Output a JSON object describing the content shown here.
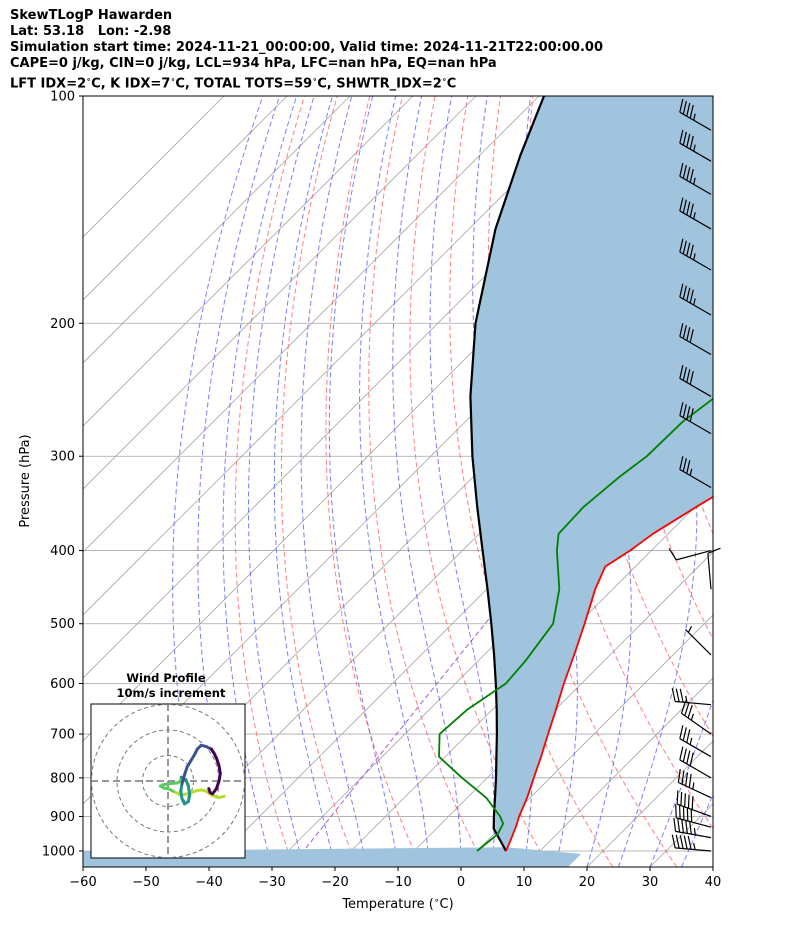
{
  "header": {
    "line1": "SkewTLogP Hawarden",
    "line2": "Lat: 53.18   Lon: -2.98",
    "line3": "Simulation start time: 2024-11-21_00:00:00, Valid time: 2024-11-21T22:00:00.00",
    "line4": "CAPE=0 j/kg, CIN=0 j/kg, LCL=934 hPa, LFC=nan hPa, EQ=nan hPa",
    "line5": "LFT IDX=2$^\\circ$C, K IDX=7$^\\circ$C, TOTAL TOTS=59$^\\circ$C, SHWTR_IDX=2$^\\circ$C"
  },
  "chart_data": [
    {
      "type": "line",
      "xlabel": "Temperature ($^\\circ$C)",
      "ylabel": "Pressure (hPa)",
      "xlim": [
        -60,
        40
      ],
      "ylim": [
        1050,
        100
      ],
      "y_scale": "log",
      "skew": "isotherms skewed 45 degrees",
      "grid": true,
      "x_ticks": [
        -60,
        -50,
        -40,
        -30,
        -20,
        -10,
        0,
        10,
        20,
        30,
        40
      ],
      "y_ticks": [
        1000,
        900,
        800,
        700,
        600,
        500,
        400,
        300,
        200,
        100
      ],
      "colors": {
        "temperature": "#ff0000",
        "dewpoint": "#008000",
        "parcel": "#000000",
        "cin_cape_fill": "#a0c4dd",
        "dry_adiabats": "#ff5555",
        "moist_adiabats": "#5560ff",
        "isotherms": "#a8a8a8",
        "mixing_ratio": "#9a40c8",
        "wind_barbs": "#000000"
      },
      "series": [
        {
          "key": "temperature",
          "values": [
            [
              1000,
              4.6
            ],
            [
              970,
              3.7
            ],
            [
              925,
              2.2
            ],
            [
              900,
              1.2
            ],
            [
              850,
              -0.5
            ],
            [
              800,
              -2.6
            ],
            [
              750,
              -4.8
            ],
            [
              700,
              -7.3
            ],
            [
              650,
              -9.9
            ],
            [
              600,
              -12.8
            ],
            [
              550,
              -15.7
            ],
            [
              500,
              -19.0
            ],
            [
              450,
              -22.8
            ],
            [
              420,
              -24.8
            ],
            [
              400,
              -23.4
            ],
            [
              380,
              -22.4
            ],
            [
              350,
              -19.8
            ],
            [
              330,
              -17.8
            ],
            [
              300,
              -14.3
            ],
            [
              270,
              -11.5
            ],
            [
              250,
              -9.3
            ],
            [
              220,
              -6.5
            ],
            [
              200,
              -3.5
            ],
            [
              180,
              2.8
            ],
            [
              160,
              8.0
            ],
            [
              140,
              11.5
            ],
            [
              120,
              14.9
            ],
            [
              100,
              17.0
            ]
          ]
        },
        {
          "key": "dewpoint",
          "values": [
            [
              1000,
              0.0
            ],
            [
              950,
              0.6
            ],
            [
              920,
              -0.2
            ],
            [
              900,
              -1.8
            ],
            [
              850,
              -7.0
            ],
            [
              800,
              -14.0
            ],
            [
              750,
              -21.0
            ],
            [
              700,
              -24.5
            ],
            [
              650,
              -24.0
            ],
            [
              600,
              -22.0
            ],
            [
              560,
              -22.5
            ],
            [
              500,
              -24.0
            ],
            [
              450,
              -28.5
            ],
            [
              400,
              -35.0
            ],
            [
              380,
              -37.4
            ],
            [
              350,
              -37.7
            ],
            [
              320,
              -36.8
            ],
            [
              300,
              -35.7
            ],
            [
              270,
              -35.5
            ],
            [
              250,
              -34.2
            ],
            [
              230,
              -34.0
            ],
            [
              210,
              -36.3
            ],
            [
              200,
              -38.5
            ],
            [
              190,
              -41.5
            ],
            [
              180,
              -44.4
            ],
            [
              160,
              -43.2
            ],
            [
              140,
              -40.2
            ],
            [
              120,
              -37.0
            ],
            [
              100,
              -33.8
            ]
          ]
        },
        {
          "key": "parcel",
          "values": [
            [
              1000,
              4.6
            ],
            [
              934,
              -0.9
            ],
            [
              900,
              -2.8
            ],
            [
              850,
              -5.6
            ],
            [
              800,
              -8.6
            ],
            [
              750,
              -11.9
            ],
            [
              700,
              -15.4
            ],
            [
              650,
              -19.3
            ],
            [
              600,
              -23.6
            ],
            [
              550,
              -28.4
            ],
            [
              500,
              -33.8
            ],
            [
              450,
              -39.9
            ],
            [
              400,
              -46.8
            ],
            [
              350,
              -54.6
            ],
            [
              300,
              -63.4
            ],
            [
              250,
              -73.2
            ],
            [
              200,
              -84.0
            ],
            [
              150,
              -95.8
            ],
            [
              120,
              -103.5
            ],
            [
              100,
              -109.2
            ]
          ]
        }
      ],
      "wind_barbs": [
        {
          "p": 1000,
          "dir": 275,
          "spd": 55
        },
        {
          "p": 960,
          "dir": 280,
          "spd": 55
        },
        {
          "p": 930,
          "dir": 285,
          "spd": 50
        },
        {
          "p": 900,
          "dir": 290,
          "spd": 50
        },
        {
          "p": 850,
          "dir": 295,
          "spd": 45
        },
        {
          "p": 800,
          "dir": 300,
          "spd": 40
        },
        {
          "p": 750,
          "dir": 300,
          "spd": 35
        },
        {
          "p": 700,
          "dir": 305,
          "spd": 35
        },
        {
          "p": 640,
          "dir": 275,
          "spd": 35
        },
        {
          "p": 550,
          "dir": 315,
          "spd": 5
        },
        {
          "p": 450,
          "dir": 355,
          "spd": 10
        },
        {
          "p": 400,
          "dir": 255,
          "spd": 10
        },
        {
          "p": 330,
          "dir": 300,
          "spd": 35
        },
        {
          "p": 280,
          "dir": 300,
          "spd": 40
        },
        {
          "p": 250,
          "dir": 300,
          "spd": 40
        },
        {
          "p": 220,
          "dir": 300,
          "spd": 40
        },
        {
          "p": 195,
          "dir": 300,
          "spd": 45
        },
        {
          "p": 170,
          "dir": 300,
          "spd": 45
        },
        {
          "p": 150,
          "dir": 300,
          "spd": 45
        },
        {
          "p": 135,
          "dir": 300,
          "spd": 45
        },
        {
          "p": 122,
          "dir": 300,
          "spd": 45
        },
        {
          "p": 111,
          "dir": 300,
          "spd": 45
        }
      ]
    },
    {
      "type": "line",
      "title": "Wind Profile",
      "subtitle": "10m/s increment",
      "range_rings_ms": [
        10,
        20,
        30
      ],
      "hodograph_uv": [
        [
          22.0,
          -6.0
        ],
        [
          20.0,
          -6.5
        ],
        [
          17.0,
          -5.5
        ],
        [
          15.0,
          -4.0
        ],
        [
          13.0,
          -3.5
        ],
        [
          10.5,
          -4.0
        ],
        [
          8.0,
          -5.0
        ],
        [
          5.0,
          -5.5
        ],
        [
          2.0,
          -4.0
        ],
        [
          0.0,
          -3.0
        ],
        [
          -1.5,
          -2.8
        ],
        [
          -3.0,
          -2.0
        ],
        [
          -2.0,
          -1.5
        ],
        [
          1.0,
          -1.0
        ],
        [
          3.5,
          -0.8
        ],
        [
          5.0,
          0.0
        ],
        [
          5.2,
          1.5
        ],
        [
          7.0,
          0.5
        ],
        [
          8.0,
          -2.0
        ],
        [
          8.5,
          -5.5
        ],
        [
          8.0,
          -8.0
        ],
        [
          6.5,
          -9.0
        ],
        [
          5.5,
          -7.0
        ],
        [
          5.0,
          -4.0
        ],
        [
          5.5,
          -1.0
        ],
        [
          6.5,
          2.5
        ],
        [
          7.5,
          5.5
        ],
        [
          9.0,
          8.0
        ],
        [
          10.5,
          10.5
        ],
        [
          11.5,
          12.5
        ],
        [
          13.0,
          14.0
        ],
        [
          15.0,
          13.5
        ],
        [
          17.0,
          12.5
        ],
        [
          18.0,
          11.0
        ],
        [
          19.0,
          9.0
        ],
        [
          20.0,
          6.0
        ],
        [
          20.5,
          3.0
        ],
        [
          20.0,
          0.0
        ],
        [
          19.0,
          -3.0
        ],
        [
          17.5,
          -5.0
        ],
        [
          16.5,
          -4.5
        ],
        [
          16.0,
          -3.0
        ]
      ]
    }
  ]
}
